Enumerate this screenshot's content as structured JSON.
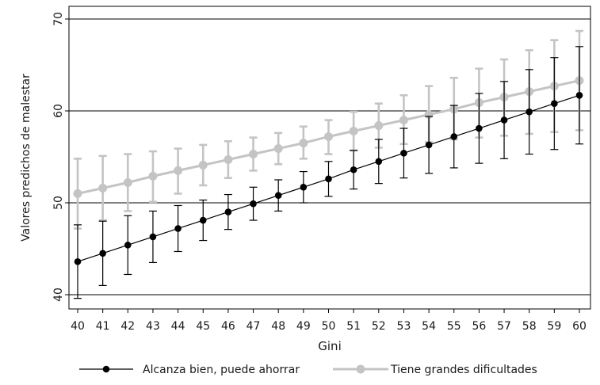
{
  "chart_data": {
    "type": "line",
    "title": "",
    "xlabel": "Gini",
    "ylabel": "Valores predichos de malestar",
    "x": [
      40,
      41,
      42,
      43,
      44,
      45,
      46,
      47,
      48,
      49,
      50,
      51,
      52,
      53,
      54,
      55,
      56,
      57,
      58,
      59,
      60
    ],
    "xlim": [
      40,
      60
    ],
    "ylim": [
      40,
      70
    ],
    "yticks": [
      40,
      50,
      60,
      70
    ],
    "grid": true,
    "legend_position": "bottom",
    "series": [
      {
        "name": "Alcanza bien, puede ahorrar",
        "color": "#000000",
        "values": [
          43.6,
          44.5,
          45.4,
          46.3,
          47.2,
          48.1,
          49.0,
          49.9,
          50.8,
          51.7,
          52.6,
          53.6,
          54.5,
          55.4,
          56.3,
          57.2,
          58.1,
          59.0,
          59.9,
          60.8,
          61.7
        ],
        "lower": [
          39.6,
          41.0,
          42.2,
          43.5,
          44.7,
          45.9,
          47.1,
          48.1,
          49.1,
          50.0,
          50.7,
          51.5,
          52.1,
          52.7,
          53.2,
          53.8,
          54.3,
          54.8,
          55.3,
          55.8,
          56.4
        ],
        "upper": [
          47.6,
          48.0,
          48.6,
          49.1,
          49.7,
          50.3,
          50.9,
          51.7,
          52.5,
          53.4,
          54.5,
          55.7,
          56.9,
          58.1,
          59.4,
          60.6,
          61.9,
          63.2,
          64.5,
          65.8,
          67.0
        ]
      },
      {
        "name": "Tiene grandes dificultades",
        "color": "#c4c4c4",
        "values": [
          51.0,
          51.6,
          52.2,
          52.9,
          53.5,
          54.1,
          54.7,
          55.3,
          55.9,
          56.5,
          57.2,
          57.8,
          58.4,
          59.0,
          59.6,
          60.2,
          60.9,
          61.5,
          62.1,
          62.7,
          63.3
        ],
        "lower": [
          47.2,
          48.1,
          49.1,
          50.1,
          51.0,
          51.9,
          52.7,
          53.5,
          54.2,
          54.8,
          55.3,
          55.7,
          56.0,
          56.4,
          56.6,
          56.9,
          57.1,
          57.3,
          57.5,
          57.7,
          57.9
        ],
        "upper": [
          54.8,
          55.1,
          55.3,
          55.6,
          55.9,
          56.3,
          56.7,
          57.1,
          57.6,
          58.3,
          59.0,
          59.9,
          60.8,
          61.7,
          62.7,
          63.6,
          64.6,
          65.6,
          66.6,
          67.7,
          68.7
        ]
      }
    ]
  }
}
